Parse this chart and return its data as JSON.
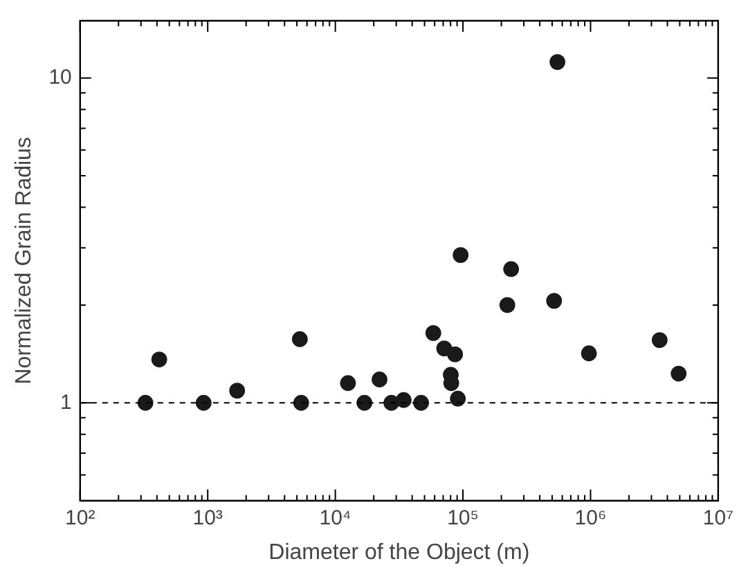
{
  "chart_data": {
    "type": "scatter",
    "xlabel": "Diameter of the Object (m)",
    "ylabel": "Normalized Grain Radius",
    "log": "xy",
    "marker": "circle",
    "grid": false,
    "x": [
      325,
      417,
      929,
      1700,
      5270,
      5400,
      12560,
      16900,
      22200,
      27500,
      34300,
      47000,
      58600,
      71300,
      86700,
      80300,
      81000,
      91200,
      95900,
      222800,
      238600,
      518000,
      550000,
      971000,
      3480000,
      4900000
    ],
    "series": [
      {
        "color": "#1a1a1a",
        "values": [
          1,
          1.36,
          1,
          1.09,
          1.57,
          1,
          1.15,
          1,
          1.18,
          1,
          1.02,
          1,
          1.64,
          1.47,
          1.41,
          1.22,
          1.15,
          1.03,
          2.85,
          2,
          2.58,
          2.06,
          11.2,
          1.42,
          1.56,
          1.23
        ]
      }
    ],
    "xlim": [
      100,
      10000000
    ],
    "ylim": [
      0.5,
      15
    ],
    "xticks": [
      {
        "value": 100,
        "label": "10²"
      },
      {
        "value": 200,
        "label": null
      },
      {
        "value": 300,
        "label": null
      },
      {
        "value": 400,
        "label": null
      },
      {
        "value": 500,
        "label": null
      },
      {
        "value": 600,
        "label": null
      },
      {
        "value": 700,
        "label": null
      },
      {
        "value": 800,
        "label": null
      },
      {
        "value": 900,
        "label": null
      },
      {
        "value": 1000,
        "label": "10³"
      },
      {
        "value": 2000,
        "label": null
      },
      {
        "value": 3000,
        "label": null
      },
      {
        "value": 4000,
        "label": null
      },
      {
        "value": 5000,
        "label": null
      },
      {
        "value": 6000,
        "label": null
      },
      {
        "value": 7000,
        "label": null
      },
      {
        "value": 8000,
        "label": null
      },
      {
        "value": 9000,
        "label": null
      },
      {
        "value": 10000,
        "label": "10⁴"
      },
      {
        "value": 20000,
        "label": null
      },
      {
        "value": 30000,
        "label": null
      },
      {
        "value": 40000,
        "label": null
      },
      {
        "value": 50000,
        "label": null
      },
      {
        "value": 60000,
        "label": null
      },
      {
        "value": 70000,
        "label": null
      },
      {
        "value": 80000,
        "label": null
      },
      {
        "value": 90000,
        "label": null
      },
      {
        "value": 100000,
        "label": "10⁵"
      },
      {
        "value": 200000,
        "label": null
      },
      {
        "value": 300000,
        "label": null
      },
      {
        "value": 400000,
        "label": null
      },
      {
        "value": 500000,
        "label": null
      },
      {
        "value": 600000,
        "label": null
      },
      {
        "value": 700000,
        "label": null
      },
      {
        "value": 800000,
        "label": null
      },
      {
        "value": 900000,
        "label": null
      },
      {
        "value": 1000000,
        "label": "10⁶"
      },
      {
        "value": 2000000,
        "label": null
      },
      {
        "value": 3000000,
        "label": null
      },
      {
        "value": 4000000,
        "label": null
      },
      {
        "value": 5000000,
        "label": null
      },
      {
        "value": 6000000,
        "label": null
      },
      {
        "value": 7000000,
        "label": null
      },
      {
        "value": 8000000,
        "label": null
      },
      {
        "value": 9000000,
        "label": null
      },
      {
        "value": 10000000,
        "label": "10⁷"
      }
    ],
    "yticks": [
      {
        "value": 0.6,
        "label": null
      },
      {
        "value": 0.7,
        "label": null
      },
      {
        "value": 0.8,
        "label": null
      },
      {
        "value": 0.9,
        "label": null
      },
      1,
      {
        "value": 2,
        "label": null
      },
      {
        "value": 3,
        "label": null
      },
      {
        "value": 4,
        "label": null
      },
      {
        "value": 5,
        "label": null
      },
      {
        "value": 6,
        "label": null
      },
      {
        "value": 7,
        "label": null
      },
      {
        "value": 8,
        "label": null
      },
      {
        "value": 9,
        "label": null
      },
      10
    ],
    "ref_lines": [
      {
        "axis": "y",
        "value": 1,
        "color": "#000000",
        "line_style": "dashed"
      }
    ]
  }
}
